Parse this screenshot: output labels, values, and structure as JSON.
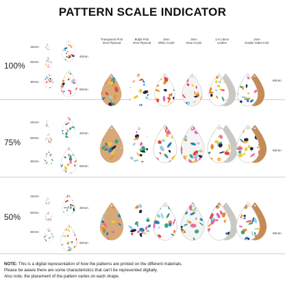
{
  "title": "PATTERN SCALE INDICATOR",
  "materials": [
    {
      "line1": "Transparent Print",
      "line2": "3mm Plywood"
    },
    {
      "line1": "Bright Print",
      "line2": "3mm Plywood"
    },
    {
      "line1": "3mm",
      "line2": "White Acrylic"
    },
    {
      "line1": "3mm",
      "line2": "Clear Acrylic"
    },
    {
      "line1": "1.6-1.8mm",
      "line2": "Leather"
    },
    {
      "line1": "2mm",
      "line2": "Double Sided Cork"
    }
  ],
  "rows": [
    {
      "scale": "100%",
      "sizes": [
        "15mm",
        "20mm",
        "30mm",
        "40mm",
        "50mm"
      ],
      "large_size": "60mm"
    },
    {
      "scale": "75%",
      "sizes": [
        "15mm",
        "20mm",
        "30mm",
        "40mm",
        "50mm"
      ],
      "large_size": "60mm"
    },
    {
      "scale": "50%",
      "sizes": [
        "15mm",
        "20mm",
        "30mm",
        "40mm",
        "50mm"
      ],
      "large_size": "60mm"
    }
  ],
  "note": {
    "label": "NOTE:",
    "line1": "This is a digital representation of how the patterns are printed on the different materials.",
    "line2": "Please be aware there are some characteristics that can't be represented digitally.",
    "line3": "Also note, the placement of the pattern varies on each shape."
  },
  "colors": {
    "wood": "#d7a878",
    "white": "#ffffff",
    "clear": "#f4f4f4",
    "leather": "#c9c9c4",
    "cork": "#c58b55"
  }
}
